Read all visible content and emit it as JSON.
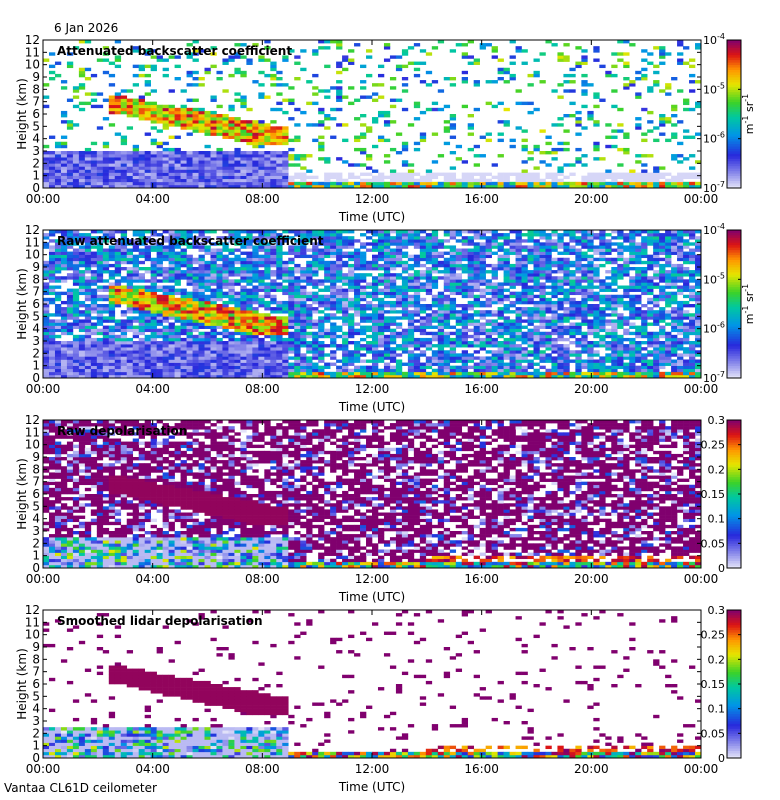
{
  "header": {
    "date": "6 Jan 2026"
  },
  "footer": {
    "label": "Vantaa CL61D ceilometer"
  },
  "chart_data": [
    {
      "type": "heatmap",
      "title": "Attenuated backscatter coefficient",
      "xlabel": "Time (UTC)",
      "ylabel": "Height (km)",
      "xticks": [
        "00:00",
        "04:00",
        "08:00",
        "12:00",
        "16:00",
        "20:00",
        "00:00"
      ],
      "yticks": [
        "0",
        "1",
        "2",
        "3",
        "4",
        "5",
        "6",
        "7",
        "8",
        "9",
        "10",
        "11",
        "12"
      ],
      "xlim": [
        0,
        24
      ],
      "ylim": [
        0,
        12
      ],
      "colorbar": {
        "scale": "log",
        "ticks": [
          "10",
          "10",
          "10",
          "10"
        ],
        "exponents": [
          "-7",
          "-6",
          "-5",
          "-4"
        ],
        "unit_base": [
          "m",
          "sr"
        ],
        "unit_exp": [
          "-1",
          "-1"
        ]
      },
      "features": [
        {
          "kind": "cloud layer",
          "hours": [
            2.5,
            9
          ],
          "height_km": [
            3.5,
            7.5
          ]
        },
        {
          "kind": "boundary layer aerosol",
          "hours": [
            0,
            9
          ],
          "height_km": [
            0,
            3
          ]
        }
      ]
    },
    {
      "type": "heatmap",
      "title": "Raw attenuated backscatter coefficient",
      "xlabel": "Time (UTC)",
      "ylabel": "Height (km)",
      "xticks": [
        "00:00",
        "04:00",
        "08:00",
        "12:00",
        "16:00",
        "20:00",
        "00:00"
      ],
      "yticks": [
        "0",
        "1",
        "2",
        "3",
        "4",
        "5",
        "6",
        "7",
        "8",
        "9",
        "10",
        "11",
        "12"
      ],
      "xlim": [
        0,
        24
      ],
      "ylim": [
        0,
        12
      ],
      "colorbar": {
        "scale": "log",
        "ticks": [
          "10",
          "10",
          "10",
          "10"
        ],
        "exponents": [
          "-7",
          "-6",
          "-5",
          "-4"
        ],
        "unit_base": [
          "m",
          "sr"
        ],
        "unit_exp": [
          "-1",
          "-1"
        ]
      },
      "features": [
        {
          "kind": "cloud layer",
          "hours": [
            2.5,
            9
          ],
          "height_km": [
            3.5,
            7.5
          ]
        }
      ]
    },
    {
      "type": "heatmap",
      "title": "Raw depolarisation",
      "xlabel": "Time (UTC)",
      "ylabel": "Height (km)",
      "xticks": [
        "00:00",
        "04:00",
        "08:00",
        "12:00",
        "16:00",
        "20:00",
        "00:00"
      ],
      "yticks": [
        "0",
        "1",
        "2",
        "3",
        "4",
        "5",
        "6",
        "7",
        "8",
        "9",
        "10",
        "11",
        "12"
      ],
      "xlim": [
        0,
        24
      ],
      "ylim": [
        0,
        12
      ],
      "colorbar": {
        "scale": "linear",
        "ticks": [
          "0",
          "0.05",
          "0.1",
          "0.15",
          "0.2",
          "0.25",
          "0.3"
        ]
      },
      "features": [
        {
          "kind": "cloud layer",
          "hours": [
            2.5,
            9
          ],
          "height_km": [
            3.5,
            7.5
          ]
        }
      ]
    },
    {
      "type": "heatmap",
      "title": "Smoothed lidar depolarisation",
      "xlabel": "Time (UTC)",
      "ylabel": "Height (km)",
      "xticks": [
        "00:00",
        "04:00",
        "08:00",
        "12:00",
        "16:00",
        "20:00",
        "00:00"
      ],
      "yticks": [
        "0",
        "1",
        "2",
        "3",
        "4",
        "5",
        "6",
        "7",
        "8",
        "9",
        "10",
        "11",
        "12"
      ],
      "xlim": [
        0,
        24
      ],
      "ylim": [
        0,
        12
      ],
      "colorbar": {
        "scale": "linear",
        "ticks": [
          "0",
          "0.05",
          "0.1",
          "0.15",
          "0.2",
          "0.25",
          "0.3"
        ]
      },
      "features": [
        {
          "kind": "cloud layer",
          "hours": [
            2.5,
            9
          ],
          "height_km": [
            3.5,
            7.5
          ]
        }
      ]
    }
  ]
}
